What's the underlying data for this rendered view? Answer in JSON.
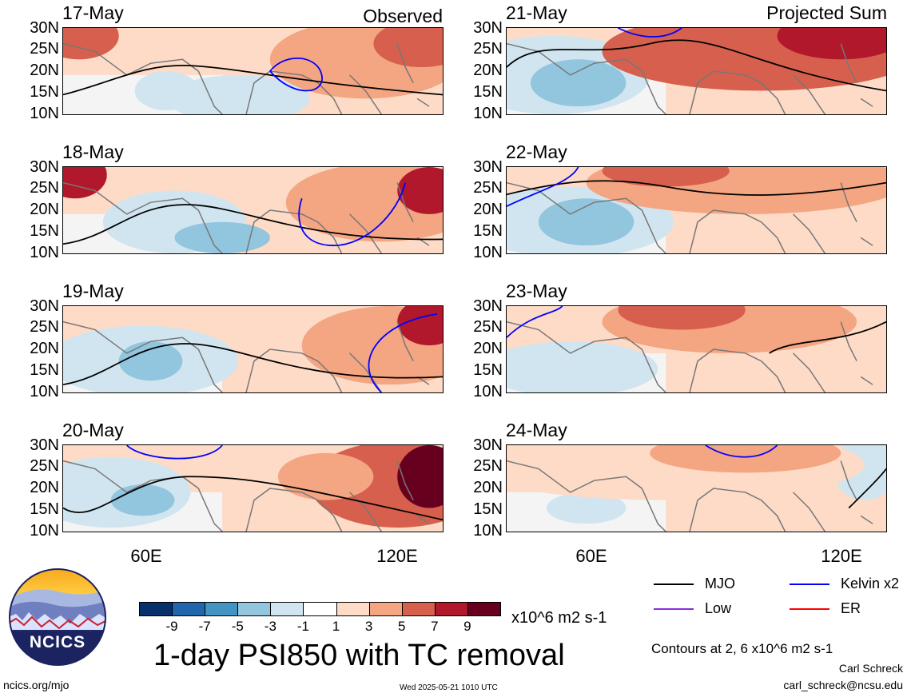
{
  "panels": {
    "observed": {
      "heading": "Observed",
      "dates": [
        "17-May",
        "18-May",
        "19-May",
        "20-May"
      ]
    },
    "projected": {
      "heading": "Projected Sum",
      "dates": [
        "21-May",
        "22-May",
        "23-May",
        "24-May"
      ]
    }
  },
  "latitude_ticks": [
    "30N",
    "25N",
    "20N",
    "15N",
    "10N"
  ],
  "longitude_ticks": [
    "60E",
    "120E"
  ],
  "colorbar": {
    "colors": [
      "#08306b",
      "#2166ac",
      "#4393c3",
      "#92c5de",
      "#d1e5f0",
      "#ffffff",
      "#fddbc7",
      "#f4a582",
      "#d6604d",
      "#b2182b",
      "#67001f"
    ],
    "tick_labels": [
      "-9",
      "-7",
      "-5",
      "-3",
      "-1",
      "1",
      "3",
      "5",
      "7",
      "9"
    ],
    "units": "x10^6 m2 s-1"
  },
  "legend": [
    {
      "label": "MJO",
      "color": "#000000"
    },
    {
      "label": "Kelvin x2",
      "color": "#0000ff"
    },
    {
      "label": "Low",
      "color": "#8a2be2"
    },
    {
      "label": "ER",
      "color": "#ff0000"
    }
  ],
  "title": "1-day PSI850 with TC removal",
  "contours_note": "Contours at 2, 6 x10^6 m2 s-1",
  "author": "Carl Schreck",
  "email": "carl_schreck@ncsu.edu",
  "website": "ncics.org/mjo",
  "timestamp": "Wed 2025-05-21 1010 UTC",
  "logo": {
    "text": "NCICS"
  }
}
